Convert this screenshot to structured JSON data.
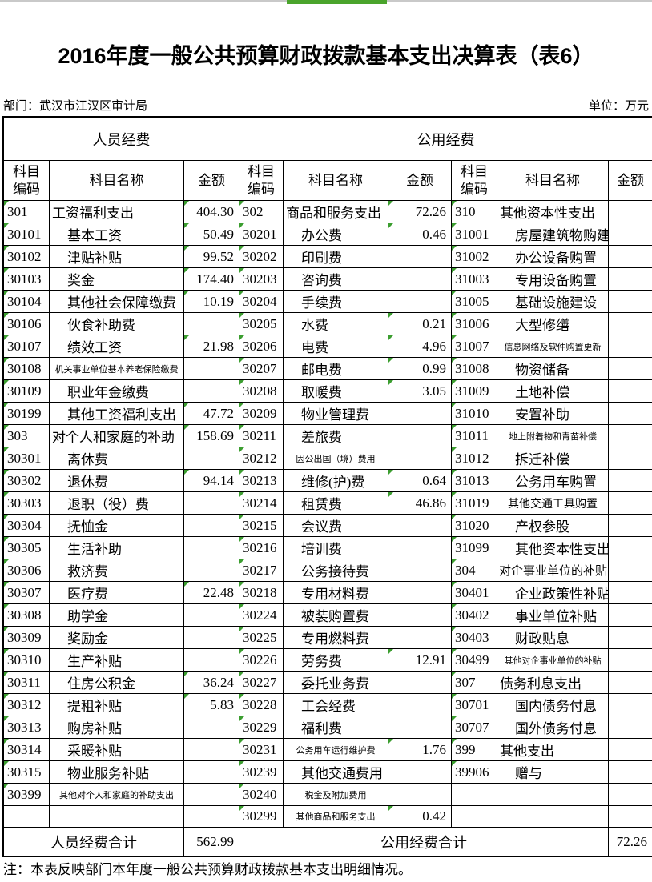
{
  "page": {
    "title": "2016年度一般公共预算财政拨款基本支出决算表（表6）",
    "department_label": "部门：武汉市江汉区审计局",
    "unit_label": "单位：万元",
    "note": "注：本表反映部门本年度一般公共预算财政拨款基本支出明细情况。"
  },
  "colors": {
    "topbar_green": "#4aa42c",
    "topbar_gray": "#c9c9c9",
    "triangle_green": "#3c9e30"
  },
  "table": {
    "group_headers": [
      "人员经费",
      "公用经费"
    ],
    "column_headers": [
      "科目\n编码",
      "科目名称",
      "金额"
    ],
    "groups": [
      {
        "title": "人员经费",
        "rows": [
          {
            "c": "301",
            "n": "工资福利支出",
            "a": "404.30",
            "s": "p"
          },
          {
            "c": "30101",
            "n": "基本工资",
            "a": "50.49",
            "s": "c"
          },
          {
            "c": "30102",
            "n": "津贴补贴",
            "a": "99.52",
            "s": "c"
          },
          {
            "c": "30103",
            "n": "奖金",
            "a": "174.40",
            "s": "c"
          },
          {
            "c": "30104",
            "n": "其他社会保障缴费",
            "a": "10.19",
            "s": "c"
          },
          {
            "c": "30106",
            "n": "伙食补助费",
            "a": "",
            "s": "c"
          },
          {
            "c": "30107",
            "n": "绩效工资",
            "a": "21.98",
            "s": "c"
          },
          {
            "c": "30108",
            "n": "机关事业单位基本养老保险缴费",
            "a": "",
            "s": "s"
          },
          {
            "c": "30109",
            "n": "职业年金缴费",
            "a": "",
            "s": "c"
          },
          {
            "c": "30199",
            "n": "其他工资福利支出",
            "a": "47.72",
            "s": "c"
          },
          {
            "c": "303",
            "n": "对个人和家庭的补助",
            "a": "158.69",
            "s": "p"
          },
          {
            "c": "30301",
            "n": "离休费",
            "a": "",
            "s": "c"
          },
          {
            "c": "30302",
            "n": "退休费",
            "a": "94.14",
            "s": "c"
          },
          {
            "c": "30303",
            "n": "退职（役）费",
            "a": "",
            "s": "c"
          },
          {
            "c": "30304",
            "n": "抚恤金",
            "a": "",
            "s": "c"
          },
          {
            "c": "30305",
            "n": "生活补助",
            "a": "",
            "s": "c"
          },
          {
            "c": "30306",
            "n": "救济费",
            "a": "",
            "s": "c"
          },
          {
            "c": "30307",
            "n": "医疗费",
            "a": "22.48",
            "s": "c"
          },
          {
            "c": "30308",
            "n": "助学金",
            "a": "",
            "s": "c"
          },
          {
            "c": "30309",
            "n": "奖励金",
            "a": "",
            "s": "c"
          },
          {
            "c": "30310",
            "n": "生产补贴",
            "a": "",
            "s": "c"
          },
          {
            "c": "30311",
            "n": "住房公积金",
            "a": "36.24",
            "s": "c"
          },
          {
            "c": "30312",
            "n": "提租补贴",
            "a": "5.83",
            "s": "c"
          },
          {
            "c": "30313",
            "n": "购房补贴",
            "a": "",
            "s": "c"
          },
          {
            "c": "30314",
            "n": "采暖补贴",
            "a": "",
            "s": "c"
          },
          {
            "c": "30315",
            "n": "物业服务补贴",
            "a": "",
            "s": "c"
          },
          {
            "c": "30399",
            "n": "其他对个人和家庭的补助支出",
            "a": "",
            "s": "s"
          },
          {
            "c": "",
            "n": "",
            "a": "",
            "s": "c"
          }
        ]
      },
      {
        "title": "公用经费-商品和服务支出",
        "rows": [
          {
            "c": "302",
            "n": "商品和服务支出",
            "a": "72.26",
            "s": "p"
          },
          {
            "c": "30201",
            "n": "办公费",
            "a": "0.46",
            "s": "c"
          },
          {
            "c": "30202",
            "n": "印刷费",
            "a": "",
            "s": "c"
          },
          {
            "c": "30203",
            "n": "咨询费",
            "a": "",
            "s": "c"
          },
          {
            "c": "30204",
            "n": "手续费",
            "a": "",
            "s": "c"
          },
          {
            "c": "30205",
            "n": "水费",
            "a": "0.21",
            "s": "c"
          },
          {
            "c": "30206",
            "n": "电费",
            "a": "4.96",
            "s": "c"
          },
          {
            "c": "30207",
            "n": "邮电费",
            "a": "0.99",
            "s": "c"
          },
          {
            "c": "30208",
            "n": "取暖费",
            "a": "3.05",
            "s": "c"
          },
          {
            "c": "30209",
            "n": "物业管理费",
            "a": "",
            "s": "c"
          },
          {
            "c": "30211",
            "n": "差旅费",
            "a": "",
            "s": "c"
          },
          {
            "c": "30212",
            "n": "因公出国（境）费用",
            "a": "",
            "s": "s"
          },
          {
            "c": "30213",
            "n": "维修(护)费",
            "a": "0.64",
            "s": "c"
          },
          {
            "c": "30214",
            "n": "租赁费",
            "a": "46.86",
            "s": "c"
          },
          {
            "c": "30215",
            "n": "会议费",
            "a": "",
            "s": "c"
          },
          {
            "c": "30216",
            "n": "培训费",
            "a": "",
            "s": "c"
          },
          {
            "c": "30217",
            "n": "公务接待费",
            "a": "",
            "s": "c"
          },
          {
            "c": "30218",
            "n": "专用材料费",
            "a": "",
            "s": "c"
          },
          {
            "c": "30224",
            "n": "被装购置费",
            "a": "",
            "s": "c"
          },
          {
            "c": "30225",
            "n": "专用燃料费",
            "a": "",
            "s": "c"
          },
          {
            "c": "30226",
            "n": "劳务费",
            "a": "12.91",
            "s": "c"
          },
          {
            "c": "30227",
            "n": "委托业务费",
            "a": "",
            "s": "c"
          },
          {
            "c": "30228",
            "n": "工会经费",
            "a": "",
            "s": "c"
          },
          {
            "c": "30229",
            "n": "福利费",
            "a": "",
            "s": "c"
          },
          {
            "c": "30231",
            "n": "公务用车运行维护费",
            "a": "1.76",
            "s": "s"
          },
          {
            "c": "30239",
            "n": "其他交通费用",
            "a": "",
            "s": "c"
          },
          {
            "c": "30240",
            "n": "税金及附加费用",
            "a": "",
            "s": "s"
          },
          {
            "c": "30299",
            "n": "其他商品和服务支出",
            "a": "0.42",
            "s": "s"
          }
        ]
      },
      {
        "title": "公用经费-资本性及其他",
        "rows": [
          {
            "c": "310",
            "n": "其他资本性支出",
            "a": "",
            "s": "p"
          },
          {
            "c": "31001",
            "n": "房屋建筑物购建",
            "a": "",
            "s": "c"
          },
          {
            "c": "31002",
            "n": "办公设备购置",
            "a": "",
            "s": "c"
          },
          {
            "c": "31003",
            "n": "专用设备购置",
            "a": "",
            "s": "c"
          },
          {
            "c": "31005",
            "n": "基础设施建设",
            "a": "",
            "s": "c"
          },
          {
            "c": "31006",
            "n": "大型修缮",
            "a": "",
            "s": "c"
          },
          {
            "c": "31007",
            "n": "信息网络及软件购置更新",
            "a": "",
            "s": "s"
          },
          {
            "c": "31008",
            "n": "物资储备",
            "a": "",
            "s": "c"
          },
          {
            "c": "31009",
            "n": "土地补偿",
            "a": "",
            "s": "c"
          },
          {
            "c": "31010",
            "n": "安置补助",
            "a": "",
            "s": "c"
          },
          {
            "c": "31011",
            "n": "地上附着物和青苗补偿",
            "a": "",
            "s": "s"
          },
          {
            "c": "31012",
            "n": "拆迁补偿",
            "a": "",
            "s": "c"
          },
          {
            "c": "31013",
            "n": "公务用车购置",
            "a": "",
            "s": "c"
          },
          {
            "c": "31019",
            "n": "其他交通工具购置",
            "a": "",
            "s": "m"
          },
          {
            "c": "31020",
            "n": "产权参股",
            "a": "",
            "s": "c"
          },
          {
            "c": "31099",
            "n": "其他资本性支出",
            "a": "",
            "s": "c"
          },
          {
            "c": "304",
            "n": "对企事业单位的补贴",
            "a": "",
            "s": "pm"
          },
          {
            "c": "30401",
            "n": "企业政策性补贴",
            "a": "",
            "s": "c"
          },
          {
            "c": "30402",
            "n": "事业单位补贴",
            "a": "",
            "s": "c"
          },
          {
            "c": "30403",
            "n": "财政贴息",
            "a": "",
            "s": "c"
          },
          {
            "c": "30499",
            "n": "其他对企事业单位的补贴",
            "a": "",
            "s": "s"
          },
          {
            "c": "307",
            "n": "债务利息支出",
            "a": "",
            "s": "p"
          },
          {
            "c": "30701",
            "n": "国内债务付息",
            "a": "",
            "s": "c"
          },
          {
            "c": "30707",
            "n": "国外债务付息",
            "a": "",
            "s": "c"
          },
          {
            "c": "399",
            "n": "其他支出",
            "a": "",
            "s": "p"
          },
          {
            "c": "39906",
            "n": "赠与",
            "a": "",
            "s": "c"
          },
          {
            "c": "",
            "n": "",
            "a": "",
            "s": "c"
          },
          {
            "c": "",
            "n": "",
            "a": "",
            "s": "c"
          }
        ]
      }
    ],
    "footers": [
      {
        "label": "人员经费合计",
        "amount": "562.99"
      },
      {
        "label": "公用经费合计",
        "amount": "72.26"
      }
    ]
  }
}
